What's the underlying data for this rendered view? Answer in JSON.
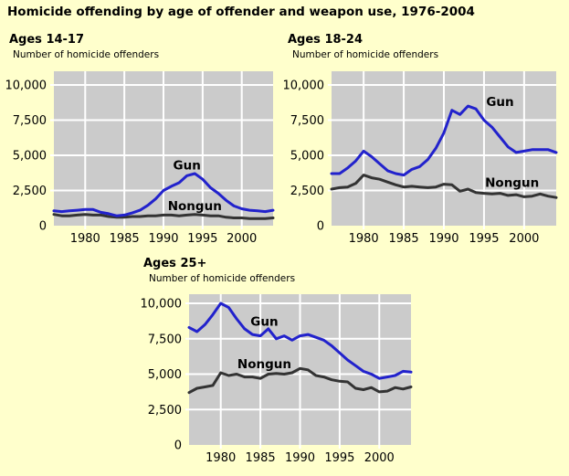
{
  "title": "Homicide offending by age of offender and weapon use, 1976-2004",
  "colors": {
    "page_bg": "#ffffcc",
    "plot_bg": "#cbcbcb",
    "grid": "#ffffff",
    "gun": "#2222cc",
    "nongun": "#333333",
    "text": "#000000"
  },
  "axis": {
    "ytick_values": [
      0,
      2500,
      5000,
      7500,
      10000
    ],
    "ytick_labels": [
      "0",
      "2,500",
      "5,000",
      "7,500",
      "10,000"
    ],
    "xtick_values": [
      1980,
      1985,
      1990,
      1995,
      2000
    ],
    "xtick_labels": [
      "1980",
      "1985",
      "1990",
      "1995",
      "2000"
    ]
  },
  "chart_data": [
    {
      "type": "line",
      "title": "Ages 14-17",
      "ylabel": "Number of homicide offenders",
      "xlim": [
        1976,
        2004
      ],
      "ylim": [
        0,
        11000
      ],
      "grid": true,
      "legend_position": "inline-annotations",
      "x": [
        1976,
        1977,
        1978,
        1979,
        1980,
        1981,
        1982,
        1983,
        1984,
        1985,
        1986,
        1987,
        1988,
        1989,
        1990,
        1991,
        1992,
        1993,
        1994,
        1995,
        1996,
        1997,
        1998,
        1999,
        2000,
        2001,
        2002,
        2003,
        2004
      ],
      "series": [
        {
          "name": "Gun",
          "color_key": "gun",
          "values": [
            1050,
            1000,
            1050,
            1100,
            1150,
            1150,
            950,
            850,
            700,
            750,
            900,
            1100,
            1450,
            1900,
            2500,
            2800,
            3050,
            3550,
            3700,
            3300,
            2700,
            2300,
            1800,
            1400,
            1200,
            1100,
            1050,
            1000,
            1100
          ],
          "label_pos": {
            "x": 1993,
            "y": 4300
          }
        },
        {
          "name": "Nongun",
          "color_key": "nongun",
          "values": [
            800,
            700,
            700,
            750,
            800,
            750,
            750,
            650,
            600,
            600,
            650,
            650,
            700,
            700,
            750,
            750,
            700,
            750,
            800,
            750,
            700,
            700,
            600,
            550,
            550,
            500,
            500,
            500,
            550
          ],
          "label_pos": {
            "x": 1994,
            "y": 1400
          }
        }
      ]
    },
    {
      "type": "line",
      "title": "Ages 18-24",
      "ylabel": "Number of homicide offenders",
      "xlim": [
        1976,
        2004
      ],
      "ylim": [
        0,
        11000
      ],
      "grid": true,
      "legend_position": "inline-annotations",
      "x": [
        1976,
        1977,
        1978,
        1979,
        1980,
        1981,
        1982,
        1983,
        1984,
        1985,
        1986,
        1987,
        1988,
        1989,
        1990,
        1991,
        1992,
        1993,
        1994,
        1995,
        1996,
        1997,
        1998,
        1999,
        2000,
        2001,
        2002,
        2003,
        2004
      ],
      "series": [
        {
          "name": "Gun",
          "color_key": "gun",
          "values": [
            3700,
            3700,
            4100,
            4600,
            5300,
            4900,
            4400,
            3900,
            3700,
            3600,
            4000,
            4200,
            4700,
            5500,
            6600,
            8200,
            7900,
            8500,
            8300,
            7500,
            7000,
            6300,
            5600,
            5200,
            5300,
            5400,
            5400,
            5400,
            5200
          ],
          "label_pos": {
            "x": 1997,
            "y": 8800
          }
        },
        {
          "name": "Nongun",
          "color_key": "nongun",
          "values": [
            2600,
            2700,
            2750,
            3000,
            3600,
            3400,
            3300,
            3100,
            2900,
            2750,
            2800,
            2750,
            2700,
            2750,
            2950,
            2900,
            2450,
            2600,
            2350,
            2300,
            2250,
            2300,
            2150,
            2200,
            2050,
            2100,
            2250,
            2100,
            2000
          ],
          "label_pos": {
            "x": 1998.5,
            "y": 3050
          }
        }
      ]
    },
    {
      "type": "line",
      "title": "Ages 25+",
      "ylabel": "Number of homicide offenders",
      "xlim": [
        1976,
        2004
      ],
      "ylim": [
        0,
        10650
      ],
      "grid": true,
      "legend_position": "inline-annotations",
      "x": [
        1976,
        1977,
        1978,
        1979,
        1980,
        1981,
        1982,
        1983,
        1984,
        1985,
        1986,
        1987,
        1988,
        1989,
        1990,
        1991,
        1992,
        1993,
        1994,
        1995,
        1996,
        1997,
        1998,
        1999,
        2000,
        2001,
        2002,
        2003,
        2004
      ],
      "series": [
        {
          "name": "Gun",
          "color_key": "gun",
          "values": [
            8300,
            8000,
            8500,
            9200,
            10000,
            9700,
            8900,
            8200,
            7800,
            7700,
            8200,
            7500,
            7700,
            7400,
            7700,
            7800,
            7600,
            7400,
            7000,
            6500,
            6000,
            5600,
            5200,
            5000,
            4700,
            4800,
            4900,
            5200,
            5150
          ],
          "label_pos": {
            "x": 1985.5,
            "y": 8700
          }
        },
        {
          "name": "Nongun",
          "color_key": "nongun",
          "values": [
            3700,
            4000,
            4100,
            4200,
            5100,
            4900,
            5000,
            4800,
            4800,
            4700,
            5000,
            5050,
            5000,
            5100,
            5400,
            5300,
            4900,
            4800,
            4600,
            4500,
            4450,
            4000,
            3900,
            4050,
            3750,
            3800,
            4050,
            3950,
            4100
          ],
          "label_pos": {
            "x": 1985.5,
            "y": 5700
          }
        }
      ]
    }
  ]
}
